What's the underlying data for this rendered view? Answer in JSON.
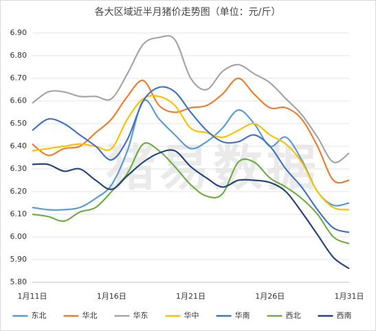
{
  "chart_data": {
    "type": "line",
    "title": "各大区域近半月猪价走势图（单位：元/斤）",
    "watermark": "猪易数据",
    "categories": [
      "1月11日",
      null,
      null,
      null,
      null,
      "1月16日",
      null,
      null,
      null,
      null,
      "1月21日",
      null,
      null,
      null,
      null,
      "1月26日",
      null,
      null,
      null,
      null,
      "1月31日"
    ],
    "ylim": [
      5.8,
      6.9
    ],
    "yticks": [
      {
        "value": 5.8,
        "label": "5.80"
      },
      {
        "value": 5.9,
        "label": "5.90"
      },
      {
        "value": 6.0,
        "label": "6.00"
      },
      {
        "value": 6.1,
        "label": "6.10"
      },
      {
        "value": 6.2,
        "label": "6.20"
      },
      {
        "value": 6.3,
        "label": "6.30"
      },
      {
        "value": 6.4,
        "label": "6.40"
      },
      {
        "value": 6.5,
        "label": "6.50"
      },
      {
        "value": 6.6,
        "label": "6.60"
      },
      {
        "value": 6.7,
        "label": "6.70"
      },
      {
        "value": 6.8,
        "label": "6.80"
      },
      {
        "value": 6.9,
        "label": "6.90"
      }
    ],
    "grid": true,
    "legend": "bottom",
    "series": [
      {
        "name": "东北",
        "color": "#5b9bd5",
        "values": [
          6.13,
          6.12,
          6.12,
          6.13,
          6.17,
          6.23,
          6.38,
          6.6,
          6.52,
          6.45,
          6.39,
          6.42,
          6.48,
          6.56,
          6.5,
          6.4,
          6.44,
          6.34,
          6.2,
          6.14,
          6.15
        ]
      },
      {
        "name": "华北",
        "color": "#ed7d31",
        "values": [
          6.41,
          6.36,
          6.39,
          6.4,
          6.46,
          6.52,
          6.62,
          6.69,
          6.58,
          6.55,
          6.57,
          6.58,
          6.63,
          6.7,
          6.63,
          6.57,
          6.57,
          6.52,
          6.4,
          6.25,
          6.25
        ]
      },
      {
        "name": "华东",
        "color": "#a5a5a5",
        "values": [
          6.59,
          6.64,
          6.64,
          6.62,
          6.62,
          6.61,
          6.72,
          6.85,
          6.88,
          6.87,
          6.7,
          6.65,
          6.73,
          6.76,
          6.72,
          6.68,
          6.61,
          6.54,
          6.44,
          6.33,
          6.37
        ]
      },
      {
        "name": "华中",
        "color": "#ffc000",
        "values": [
          6.38,
          6.39,
          6.4,
          6.41,
          6.4,
          6.39,
          6.52,
          6.61,
          6.62,
          6.58,
          6.48,
          6.46,
          6.44,
          6.47,
          6.5,
          6.45,
          6.41,
          6.33,
          6.2,
          6.13,
          6.12
        ]
      },
      {
        "name": "华南",
        "color": "#4472c4",
        "values": [
          6.47,
          6.52,
          6.5,
          6.45,
          6.4,
          6.34,
          6.43,
          6.6,
          6.66,
          6.64,
          6.55,
          6.47,
          6.42,
          6.42,
          6.45,
          6.4,
          6.3,
          6.22,
          6.12,
          6.04,
          6.02
        ]
      },
      {
        "name": "西北",
        "color": "#70ad47",
        "values": [
          6.1,
          6.09,
          6.07,
          6.11,
          6.13,
          6.2,
          6.28,
          6.41,
          6.38,
          6.31,
          6.23,
          6.18,
          6.19,
          6.33,
          6.33,
          6.26,
          6.22,
          6.17,
          6.1,
          6.0,
          5.97
        ]
      },
      {
        "name": "西南",
        "color": "#264478",
        "values": [
          6.32,
          6.32,
          6.29,
          6.3,
          6.25,
          6.21,
          6.27,
          6.33,
          6.37,
          6.38,
          6.31,
          6.26,
          6.22,
          6.25,
          6.25,
          6.24,
          6.2,
          6.11,
          6.01,
          5.91,
          5.86
        ]
      }
    ]
  }
}
